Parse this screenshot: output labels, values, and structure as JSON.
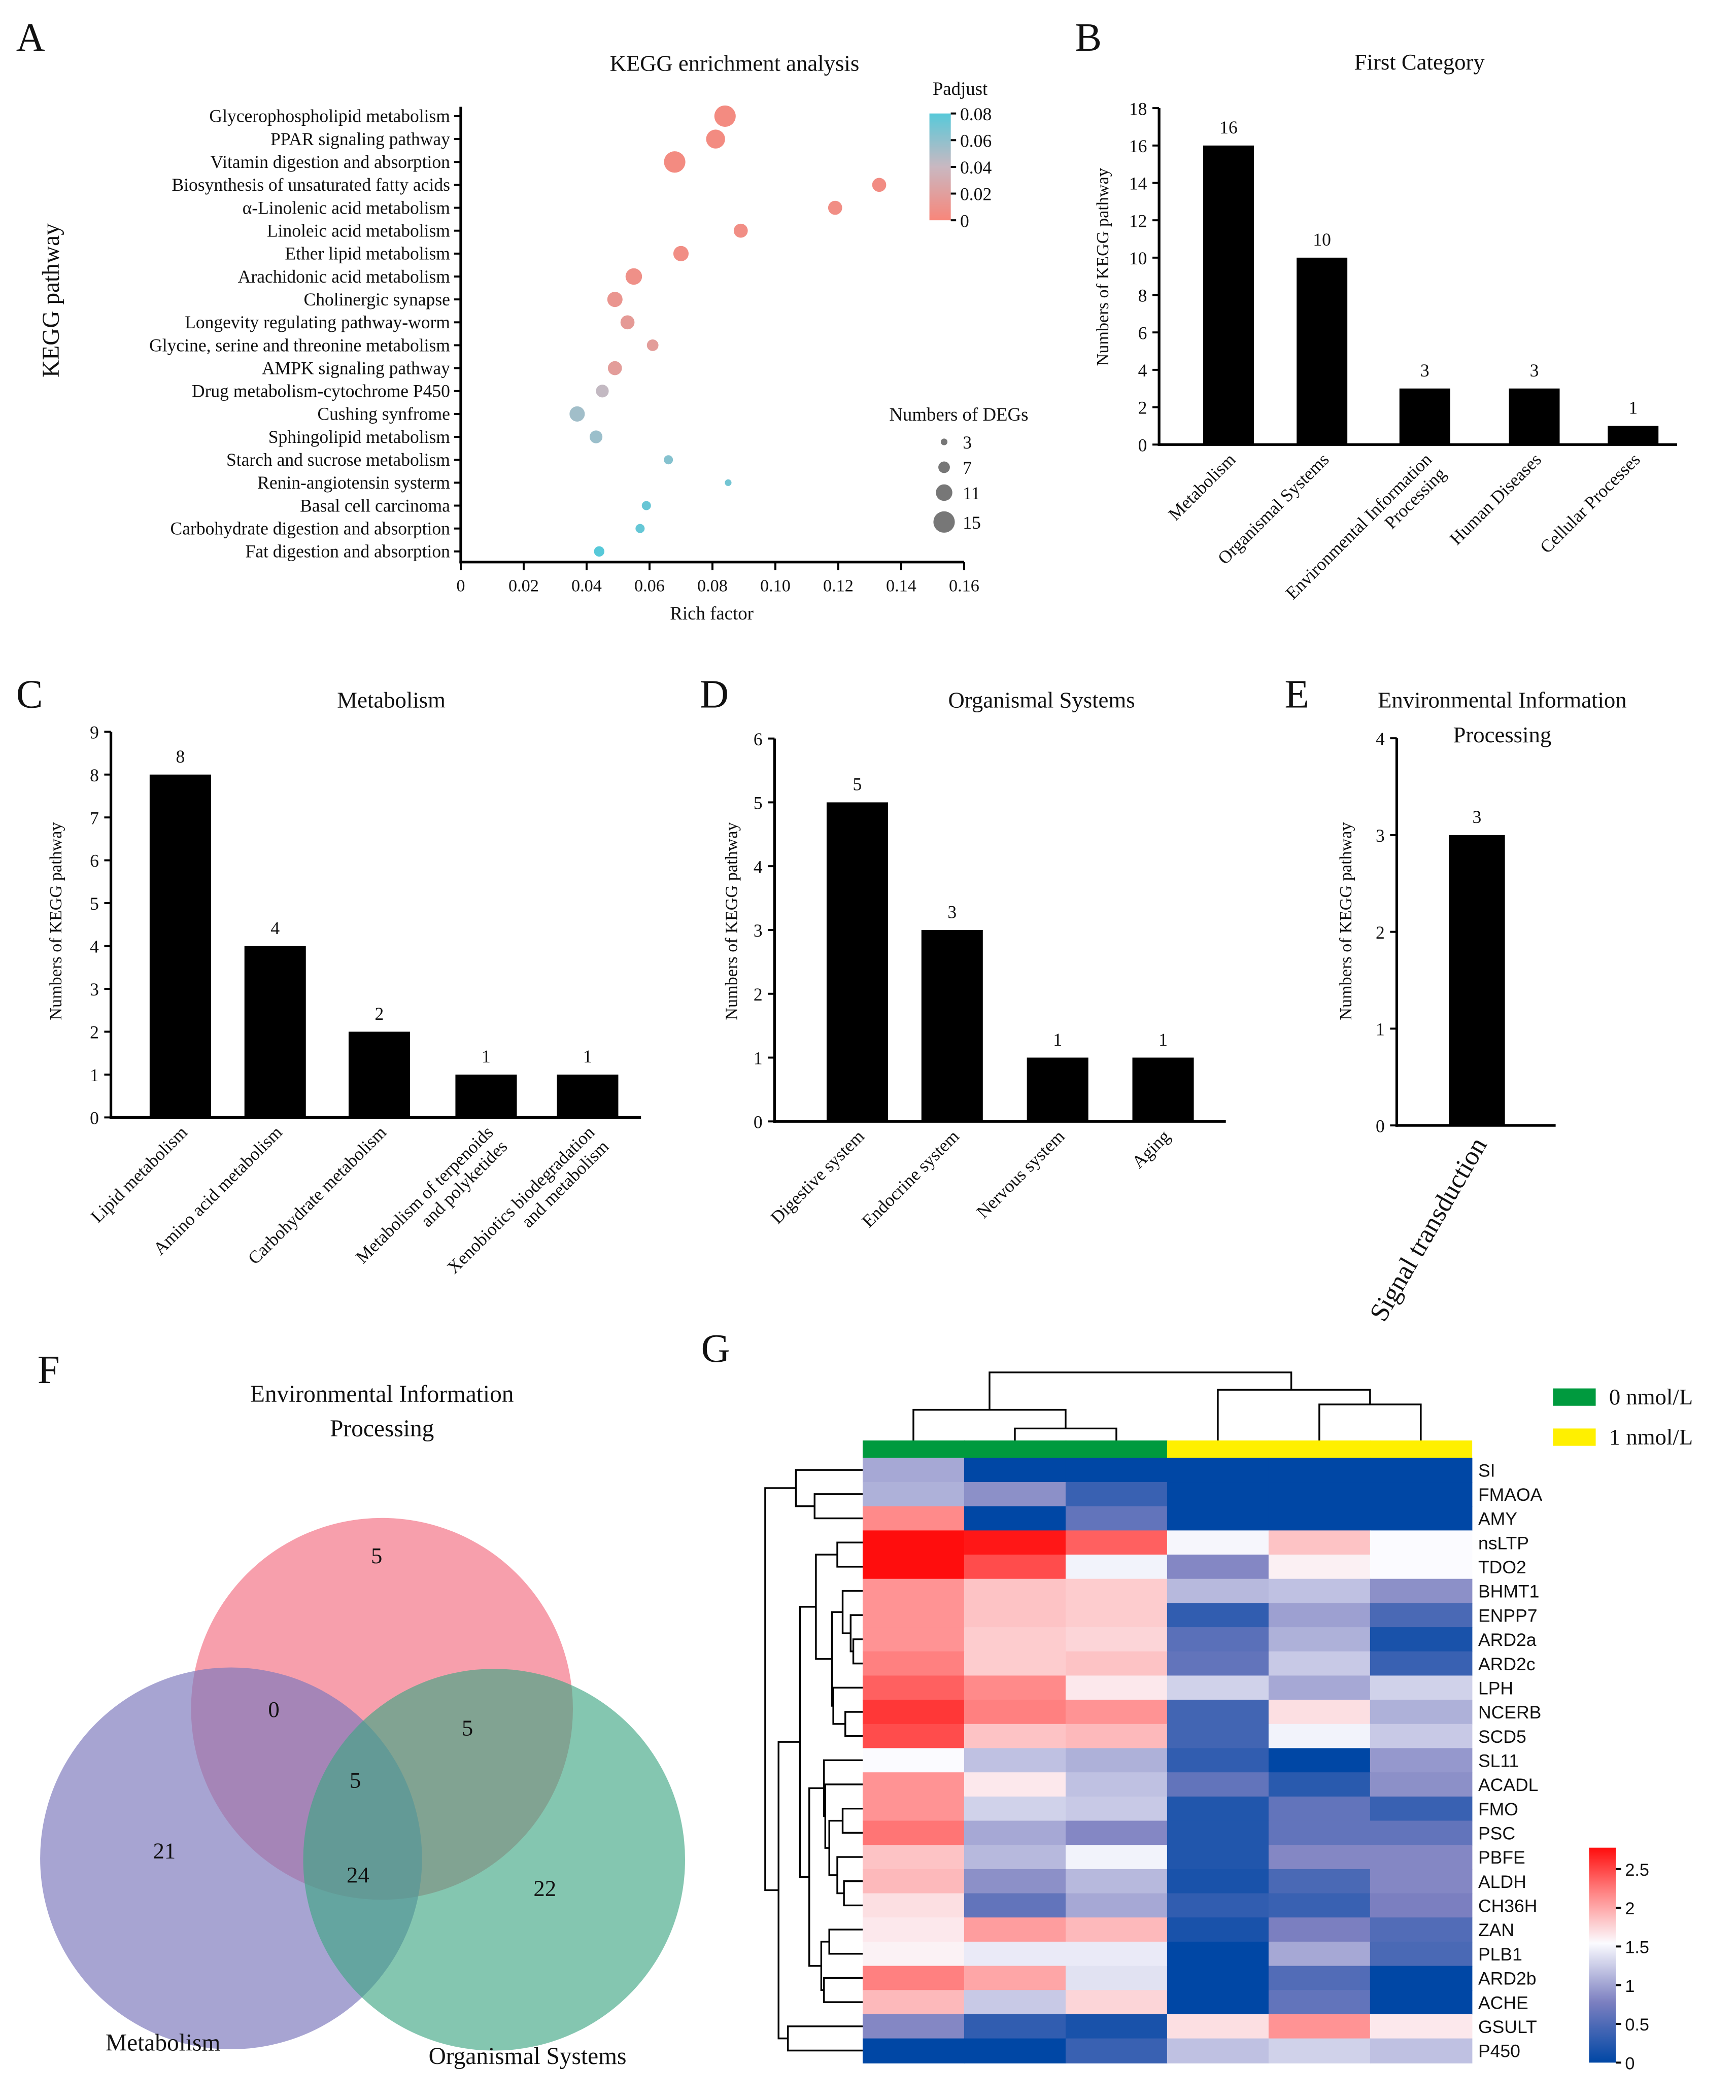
{
  "panel_letters": {
    "A": "A",
    "B": "B",
    "C": "C",
    "D": "D",
    "E": "E",
    "F": "F",
    "G": "G"
  },
  "chart_data": [
    {
      "type": "scatter",
      "title": "KEGG enrichment analysis",
      "xlabel": "Rich factor",
      "ylabel": "KEGG pathway",
      "xlim": [
        0,
        0.16
      ],
      "xticks": [
        "0",
        "0.02",
        "0.04",
        "0.06",
        "0.08",
        "0.10",
        "0.12",
        "0.14",
        "0.16"
      ],
      "pathways": [
        {
          "name": "Glycerophospholipid metabolism",
          "rich_factor": 0.084,
          "count": 15,
          "padjust": 0.004
        },
        {
          "name": "PPAR signaling pathway",
          "rich_factor": 0.081,
          "count": 13,
          "padjust": 0.004
        },
        {
          "name": "Vitamin digestion and absorption",
          "rich_factor": 0.068,
          "count": 15,
          "padjust": 0.004
        },
        {
          "name": "Biosynthesis of unsaturated fatty acids",
          "rich_factor": 0.133,
          "count": 9,
          "padjust": 0.005
        },
        {
          "name": "α-Linolenic acid metabolism",
          "rich_factor": 0.119,
          "count": 9,
          "padjust": 0.006
        },
        {
          "name": "Linoleic acid metabolism",
          "rich_factor": 0.089,
          "count": 9,
          "padjust": 0.006
        },
        {
          "name": "Ether lipid metabolism",
          "rich_factor": 0.07,
          "count": 10,
          "padjust": 0.006
        },
        {
          "name": "Arachidonic acid metabolism",
          "rich_factor": 0.055,
          "count": 11,
          "padjust": 0.008
        },
        {
          "name": "Cholinergic synapse",
          "rich_factor": 0.049,
          "count": 10,
          "padjust": 0.012
        },
        {
          "name": "Longevity regulating pathway-worm",
          "rich_factor": 0.053,
          "count": 9,
          "padjust": 0.016
        },
        {
          "name": "Glycine, serine and threonine metabolism",
          "rich_factor": 0.061,
          "count": 7,
          "padjust": 0.018
        },
        {
          "name": "AMPK signaling pathway",
          "rich_factor": 0.049,
          "count": 9,
          "padjust": 0.018
        },
        {
          "name": "Drug metabolism-cytochrome P450",
          "rich_factor": 0.045,
          "count": 8,
          "padjust": 0.042
        },
        {
          "name": "Cushing synfrome",
          "rich_factor": 0.037,
          "count": 10,
          "padjust": 0.054
        },
        {
          "name": "Sphingolipid metabolism",
          "rich_factor": 0.043,
          "count": 8,
          "padjust": 0.056
        },
        {
          "name": "Starch and sucrose metabolism",
          "rich_factor": 0.066,
          "count": 5,
          "padjust": 0.064
        },
        {
          "name": "Renin-angiotensin systerm",
          "rich_factor": 0.085,
          "count": 3,
          "padjust": 0.07
        },
        {
          "name": "Basal cell carcinoma",
          "rich_factor": 0.059,
          "count": 5,
          "padjust": 0.074
        },
        {
          "name": "Carbohydrate digestion and absorption",
          "rich_factor": 0.057,
          "count": 5,
          "padjust": 0.075
        },
        {
          "name": "Fat digestion and absorption",
          "rich_factor": 0.044,
          "count": 6,
          "padjust": 0.08
        }
      ],
      "color_legend": {
        "title": "Padjust",
        "range": [
          0,
          0.08
        ],
        "ticks": [
          {
            "label": "0.08",
            "value": 0.08
          },
          {
            "label": "0.06",
            "value": 0.06
          },
          {
            "label": "0.04",
            "value": 0.04
          },
          {
            "label": "0.02",
            "value": 0.02
          },
          {
            "label": "0",
            "value": 0
          }
        ],
        "low_color": "#f8867a",
        "mid_color": "#c9b8c1",
        "high_color": "#57c9d9"
      },
      "size_legend": {
        "title": "Numbers of DEGs",
        "values": [
          3,
          7,
          11,
          15
        ]
      }
    },
    {
      "type": "bar",
      "title": "First Category",
      "ylabel": "Numbers of KEGG pathway",
      "ylim": [
        0,
        18
      ],
      "yticks": [
        "0",
        "2",
        "4",
        "6",
        "8",
        "10",
        "12",
        "14",
        "16",
        "18"
      ],
      "categories": [
        [
          "Metabolism"
        ],
        [
          "Organismal Systems"
        ],
        [
          "Environmental Information",
          "Processing"
        ],
        [
          "Human Diseases"
        ],
        [
          "Cellular Processes"
        ]
      ],
      "values": [
        16,
        10,
        3,
        3,
        1
      ]
    },
    {
      "type": "bar",
      "title": "Metabolism",
      "ylabel": "Numbers of KEGG pathway",
      "ylim": [
        0,
        9
      ],
      "yticks": [
        "0",
        "1",
        "2",
        "3",
        "4",
        "5",
        "6",
        "7",
        "8",
        "9"
      ],
      "categories": [
        [
          "Lipid metabolism"
        ],
        [
          "Amino acid metabolism"
        ],
        [
          "Carbohydrate metabolism"
        ],
        [
          "Metabolism of terpenoids",
          "and polyketides"
        ],
        [
          "Xenobiotics biodegradation",
          "and metabolism"
        ]
      ],
      "values": [
        8,
        4,
        2,
        1,
        1
      ]
    },
    {
      "type": "bar",
      "title": "Organismal Systems",
      "ylabel": "Numbers of KEGG pathway",
      "ylim": [
        0,
        6
      ],
      "yticks": [
        "0",
        "1",
        "2",
        "3",
        "4",
        "5",
        "6"
      ],
      "categories": [
        [
          "Digestive system"
        ],
        [
          "Endocrine system"
        ],
        [
          "Nervous system"
        ],
        [
          "Aging"
        ]
      ],
      "values": [
        5,
        3,
        1,
        1
      ]
    },
    {
      "type": "bar",
      "title": "Environmental Information",
      "title2": "Processing",
      "ylabel": "Numbers of KEGG pathway",
      "ylim": [
        0,
        4
      ],
      "yticks": [
        "0",
        "1",
        "2",
        "3",
        "4"
      ],
      "categories": [
        [
          "Signal transduction"
        ]
      ],
      "values": [
        3
      ]
    },
    {
      "type": "venn",
      "sets": [
        {
          "name": "Environmental Information",
          "name2": "Processing",
          "color": "#f47a8c"
        },
        {
          "name": "Metabolism",
          "color": "#8d89c6"
        },
        {
          "name": "Organismal Systems",
          "color": "#4fae8d"
        }
      ],
      "regions": {
        "env_only": "5",
        "met_only": "21",
        "org_only": "22",
        "env_met": "0",
        "env_org": "5",
        "met_org": "24",
        "all": "5"
      }
    },
    {
      "type": "heatmap",
      "rows": [
        "SI",
        "FMAOA",
        "AMY",
        "nsLTP",
        "TDO2",
        "BHMT1",
        "ENPP7",
        "ARD2a",
        "ARD2c",
        "LPH",
        "NCERB",
        "SCD5",
        "SL11",
        "ACADL",
        "FMO",
        "PSC",
        "PBFE",
        "ALDH",
        "CH36H",
        "ZAN",
        "PLB1",
        "ARD2b",
        "ACHE",
        "GSULT",
        "P450"
      ],
      "column_groups": [
        "0 nmol/L",
        "0 nmol/L",
        "0 nmol/L",
        "1 nmol/L",
        "1 nmol/L",
        "1 nmol/L"
      ],
      "values": [
        [
          1.0,
          0,
          0,
          0,
          0,
          0
        ],
        [
          1.05,
          0.85,
          0.35,
          0,
          0,
          0
        ],
        [
          2.1,
          0,
          0.6,
          0,
          0,
          0
        ],
        [
          2.7,
          2.65,
          2.3,
          1.47,
          1.8,
          1.5
        ],
        [
          2.7,
          2.4,
          1.45,
          0.8,
          1.56,
          1.5
        ],
        [
          2.05,
          1.8,
          1.75,
          1.1,
          1.15,
          0.85
        ],
        [
          2.05,
          1.8,
          1.75,
          0.3,
          0.95,
          0.45
        ],
        [
          2.05,
          1.75,
          1.7,
          0.55,
          1.05,
          0.15
        ],
        [
          2.15,
          1.75,
          1.8,
          0.6,
          1.2,
          0.35
        ],
        [
          2.3,
          2.1,
          1.6,
          1.25,
          1.0,
          1.25
        ],
        [
          2.5,
          2.15,
          2.05,
          0.4,
          1.65,
          1.05
        ],
        [
          2.4,
          1.8,
          1.85,
          0.4,
          1.45,
          1.2
        ],
        [
          1.5,
          1.15,
          1.05,
          0.3,
          0,
          0.9
        ],
        [
          2.05,
          1.6,
          1.15,
          0.6,
          0.25,
          0.85
        ],
        [
          2.05,
          1.25,
          1.2,
          0.2,
          0.6,
          0.35
        ],
        [
          2.2,
          1.0,
          0.8,
          0.2,
          0.6,
          0.6
        ],
        [
          1.8,
          1.1,
          1.45,
          0.2,
          0.8,
          0.8
        ],
        [
          1.85,
          0.85,
          1.1,
          0.15,
          0.45,
          0.8
        ],
        [
          1.65,
          0.6,
          1.0,
          0.3,
          0.35,
          0.75
        ],
        [
          1.6,
          2.0,
          1.85,
          0.15,
          0.75,
          0.5
        ],
        [
          1.55,
          1.4,
          1.4,
          0,
          1.0,
          0.45
        ],
        [
          2.15,
          1.95,
          1.35,
          0,
          0.5,
          0
        ],
        [
          1.85,
          1.2,
          1.7,
          0,
          0.6,
          0
        ],
        [
          0.8,
          0.3,
          0.15,
          1.65,
          2.05,
          1.6
        ],
        [
          0,
          0,
          0.35,
          1.15,
          1.25,
          1.15
        ]
      ],
      "legend": [
        {
          "label": "0 nmol/L",
          "color": "#009a3e"
        },
        {
          "label": "1 nmol/L",
          "color": "#fff000"
        }
      ],
      "colorbar": {
        "range": [
          0,
          2.7
        ],
        "ticks": [
          {
            "label": "0",
            "value": 0
          },
          {
            "label": "0.5",
            "value": 0.5
          },
          {
            "label": "1",
            "value": 1
          },
          {
            "label": "1.5",
            "value": 1.5
          },
          {
            "label": "2",
            "value": 2
          },
          {
            "label": "2.5",
            "value": 2.5
          }
        ],
        "low": "#0047a5",
        "mid": "#fbfbff",
        "high": "#ff0d0d"
      }
    }
  ]
}
